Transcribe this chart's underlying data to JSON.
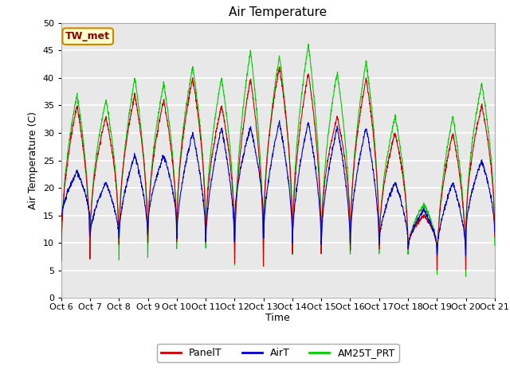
{
  "title": "Air Temperature",
  "ylabel": "Air Temperature (C)",
  "xlabel": "Time",
  "ylim": [
    0,
    50
  ],
  "fig_bg_color": "#ffffff",
  "plot_bg_color": "#e8e8e8",
  "annotation_text": "TW_met",
  "annotation_bg": "#ffffcc",
  "annotation_border": "#8B0000",
  "legend_labels": [
    "PanelT",
    "AirT",
    "AM25T_PRT"
  ],
  "legend_colors": [
    "#cc0000",
    "#0000cc",
    "#00cc00"
  ],
  "x_tick_labels": [
    "Oct 6",
    "Oct 7",
    "Oct 8",
    "Oct 9",
    "Oct 10",
    "Oct 11",
    "Oct 12",
    "Oct 13",
    "Oct 14",
    "Oct 15",
    "Oct 16",
    "Oct 17",
    "Oct 18",
    "Oct 19",
    "Oct 20",
    "Oct 21"
  ],
  "num_days": 15,
  "points_per_day": 144
}
